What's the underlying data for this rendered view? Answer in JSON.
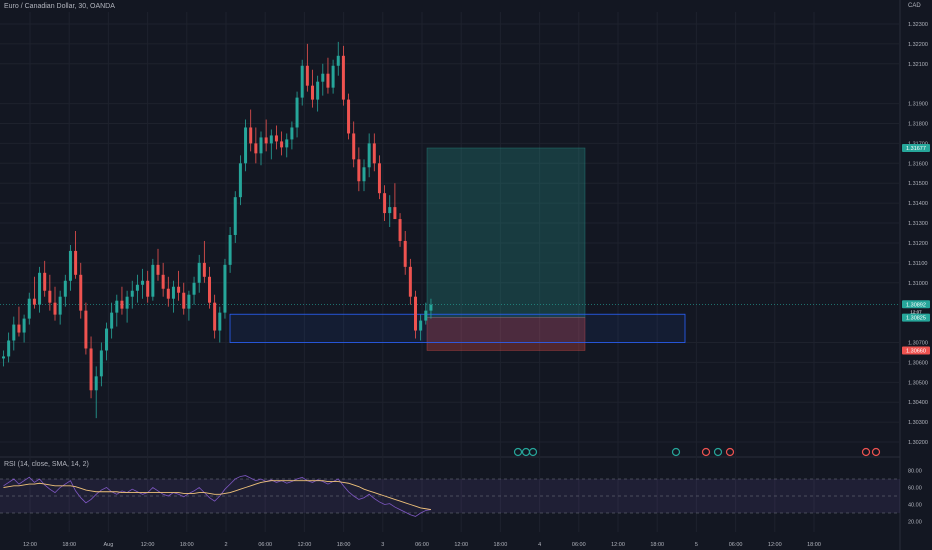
{
  "symbol_title": "Euro / Canadian Dollar, 30, OANDA",
  "currency_label": "CAD",
  "rsi_title": "RSI (14, close, SMA, 14, 2)",
  "colors": {
    "background": "#131722",
    "up": "#26a69a",
    "down": "#ef5350",
    "grid": "#1e222d",
    "text": "#b2b5be"
  },
  "chart_data": {
    "type": "candlestick",
    "title": "Euro / Canadian Dollar, 30, OANDA",
    "y_axis": {
      "ticks": [
        "1.32300",
        "1.32200",
        "1.32100",
        "1.31900",
        "1.31800",
        "1.31700",
        "1.31600",
        "1.31500",
        "1.31400",
        "1.31300",
        "1.31200",
        "1.31100",
        "1.31000",
        "1.30700",
        "1.30600",
        "1.30500",
        "1.30400",
        "1.30300",
        "1.30200"
      ],
      "tick_values": [
        1.323,
        1.322,
        1.321,
        1.319,
        1.318,
        1.317,
        1.316,
        1.315,
        1.314,
        1.313,
        1.312,
        1.311,
        1.31,
        1.307,
        1.306,
        1.305,
        1.304,
        1.303,
        1.302
      ],
      "range": [
        1.3015,
        1.3236
      ]
    },
    "x_axis": {
      "ticks": [
        "12:00",
        "18:00",
        "Aug",
        "12:00",
        "18:00",
        "2",
        "06:00",
        "12:00",
        "18:00",
        "3",
        "06:00",
        "12:00",
        "18:00",
        "4",
        "06:00",
        "12:00",
        "18:00",
        "5",
        "06:00",
        "12:00",
        "18:00"
      ]
    },
    "price_labels": [
      {
        "text": "1.31677",
        "value": 1.31677,
        "color": "#26a69a"
      },
      {
        "text": "1.30892",
        "value": 1.30892,
        "color": "#26a69a"
      },
      {
        "text": "1.30825",
        "value": 1.30825,
        "color": "#26a69a"
      },
      {
        "text": "1.30660",
        "value": 1.3066,
        "color": "#ef5350"
      }
    ],
    "price_label_sub": "12:07",
    "position": {
      "entry": 1.30825,
      "target": 1.31677,
      "stop": 1.3066
    },
    "zone": {
      "top": 1.30842,
      "bottom": 1.307
    },
    "candles": [
      [
        1.3062,
        1.3066,
        1.3058,
        1.3063
      ],
      [
        1.3063,
        1.3075,
        1.306,
        1.3071
      ],
      [
        1.3071,
        1.3083,
        1.3066,
        1.3079
      ],
      [
        1.3079,
        1.3088,
        1.3073,
        1.3075
      ],
      [
        1.3075,
        1.3084,
        1.307,
        1.3082
      ],
      [
        1.3082,
        1.3095,
        1.3079,
        1.3092
      ],
      [
        1.3092,
        1.3103,
        1.3087,
        1.3089
      ],
      [
        1.3089,
        1.3108,
        1.3085,
        1.3105
      ],
      [
        1.3105,
        1.3111,
        1.3093,
        1.3096
      ],
      [
        1.3096,
        1.3104,
        1.3086,
        1.309
      ],
      [
        1.309,
        1.3098,
        1.3081,
        1.3084
      ],
      [
        1.3084,
        1.3096,
        1.3079,
        1.3093
      ],
      [
        1.3093,
        1.3104,
        1.3088,
        1.3101
      ],
      [
        1.3101,
        1.3119,
        1.3096,
        1.3116
      ],
      [
        1.3116,
        1.3126,
        1.3102,
        1.3104
      ],
      [
        1.3104,
        1.311,
        1.3082,
        1.3086
      ],
      [
        1.3086,
        1.309,
        1.3064,
        1.3067
      ],
      [
        1.3067,
        1.3073,
        1.3042,
        1.3046
      ],
      [
        1.3046,
        1.3058,
        1.3032,
        1.3053
      ],
      [
        1.3053,
        1.307,
        1.3048,
        1.3066
      ],
      [
        1.3066,
        1.308,
        1.3061,
        1.3077
      ],
      [
        1.3077,
        1.309,
        1.3072,
        1.3085
      ],
      [
        1.3085,
        1.3094,
        1.3078,
        1.3091
      ],
      [
        1.3091,
        1.3098,
        1.3084,
        1.3087
      ],
      [
        1.3087,
        1.3096,
        1.308,
        1.3093
      ],
      [
        1.3093,
        1.3101,
        1.3087,
        1.3096
      ],
      [
        1.3096,
        1.3104,
        1.309,
        1.3099
      ],
      [
        1.3099,
        1.3107,
        1.3092,
        1.3101
      ],
      [
        1.3101,
        1.3106,
        1.309,
        1.3093
      ],
      [
        1.3093,
        1.3112,
        1.3091,
        1.3109
      ],
      [
        1.3109,
        1.3117,
        1.3101,
        1.3104
      ],
      [
        1.3104,
        1.311,
        1.3093,
        1.3097
      ],
      [
        1.3097,
        1.3103,
        1.3088,
        1.3092
      ],
      [
        1.3092,
        1.3101,
        1.3085,
        1.3098
      ],
      [
        1.3098,
        1.3106,
        1.3091,
        1.3095
      ],
      [
        1.3095,
        1.31,
        1.3084,
        1.3087
      ],
      [
        1.3087,
        1.3096,
        1.3081,
        1.3094
      ],
      [
        1.3094,
        1.3103,
        1.3089,
        1.31
      ],
      [
        1.31,
        1.3114,
        1.3095,
        1.311
      ],
      [
        1.311,
        1.3121,
        1.31,
        1.3103
      ],
      [
        1.3103,
        1.3108,
        1.3087,
        1.309
      ],
      [
        1.309,
        1.3094,
        1.3072,
        1.3076
      ],
      [
        1.3076,
        1.3088,
        1.307,
        1.3085
      ],
      [
        1.3085,
        1.3112,
        1.3082,
        1.3109
      ],
      [
        1.3109,
        1.3128,
        1.3105,
        1.3124
      ],
      [
        1.3124,
        1.3146,
        1.312,
        1.3143
      ],
      [
        1.3143,
        1.3164,
        1.3139,
        1.316
      ],
      [
        1.316,
        1.3182,
        1.3156,
        1.3178
      ],
      [
        1.3178,
        1.3187,
        1.3166,
        1.317
      ],
      [
        1.317,
        1.3178,
        1.316,
        1.3165
      ],
      [
        1.3165,
        1.3176,
        1.3159,
        1.3173
      ],
      [
        1.3173,
        1.3182,
        1.3166,
        1.317
      ],
      [
        1.317,
        1.3177,
        1.3162,
        1.3174
      ],
      [
        1.3174,
        1.3179,
        1.3167,
        1.3171
      ],
      [
        1.3171,
        1.3176,
        1.3164,
        1.3168
      ],
      [
        1.3168,
        1.3175,
        1.3163,
        1.3172
      ],
      [
        1.3172,
        1.3181,
        1.3167,
        1.3178
      ],
      [
        1.3178,
        1.3196,
        1.3173,
        1.3193
      ],
      [
        1.3193,
        1.3212,
        1.3189,
        1.3209
      ],
      [
        1.3209,
        1.322,
        1.3196,
        1.3199
      ],
      [
        1.3199,
        1.3207,
        1.3188,
        1.3192
      ],
      [
        1.3192,
        1.3204,
        1.3186,
        1.3201
      ],
      [
        1.3201,
        1.321,
        1.3194,
        1.3205
      ],
      [
        1.3205,
        1.3213,
        1.3195,
        1.3198
      ],
      [
        1.3198,
        1.3212,
        1.3195,
        1.3209
      ],
      [
        1.3209,
        1.3221,
        1.3204,
        1.3214
      ],
      [
        1.3214,
        1.3219,
        1.3189,
        1.3192
      ],
      [
        1.3192,
        1.3195,
        1.3172,
        1.3175
      ],
      [
        1.3175,
        1.3181,
        1.3158,
        1.3162
      ],
      [
        1.3162,
        1.3168,
        1.3146,
        1.3151
      ],
      [
        1.3151,
        1.3162,
        1.3146,
        1.3158
      ],
      [
        1.3158,
        1.3175,
        1.3153,
        1.317
      ],
      [
        1.317,
        1.3175,
        1.3156,
        1.316
      ],
      [
        1.316,
        1.3164,
        1.3142,
        1.3145
      ],
      [
        1.3145,
        1.3149,
        1.3131,
        1.3135
      ],
      [
        1.3135,
        1.3144,
        1.3128,
        1.3138
      ],
      [
        1.3138,
        1.315,
        1.3133,
        1.3132
      ],
      [
        1.3132,
        1.3135,
        1.3118,
        1.3121
      ],
      [
        1.3121,
        1.3126,
        1.3104,
        1.3108
      ],
      [
        1.3108,
        1.3112,
        1.3089,
        1.3093
      ],
      [
        1.3093,
        1.3096,
        1.3072,
        1.3076
      ],
      [
        1.3076,
        1.3084,
        1.3071,
        1.3081
      ],
      [
        1.3081,
        1.309,
        1.3079,
        1.3086
      ],
      [
        1.3086,
        1.3092,
        1.3082,
        1.3089
      ]
    ],
    "rsi": {
      "ticks": [
        "80.00",
        "60.00",
        "40.00",
        "20.00"
      ],
      "tick_values": [
        80,
        60,
        40,
        20
      ],
      "bands": [
        70,
        50,
        30
      ],
      "rsi_values": [
        62,
        66,
        70,
        64,
        68,
        72,
        66,
        70,
        63,
        58,
        54,
        60,
        64,
        68,
        56,
        48,
        42,
        46,
        52,
        57,
        60,
        55,
        52,
        56,
        54,
        58,
        55,
        52,
        54,
        60,
        56,
        52,
        50,
        54,
        52,
        49,
        53,
        56,
        60,
        54,
        48,
        44,
        50,
        58,
        64,
        70,
        73,
        74,
        71,
        68,
        70,
        67,
        69,
        66,
        68,
        65,
        67,
        70,
        72,
        68,
        66,
        69,
        67,
        64,
        67,
        70,
        62,
        55,
        50,
        46,
        48,
        52,
        47,
        43,
        40,
        41,
        37,
        34,
        31,
        28,
        26,
        30,
        33,
        34
      ],
      "ma_values": [
        60,
        61,
        62,
        62,
        63,
        64,
        64,
        65,
        64,
        63,
        62,
        62,
        62,
        62,
        61,
        59,
        57,
        56,
        55,
        55,
        55,
        55,
        55,
        54,
        54,
        54,
        54,
        54,
        54,
        54,
        54,
        54,
        54,
        54,
        54,
        53,
        53,
        53,
        54,
        54,
        53,
        52,
        52,
        53,
        54,
        56,
        58,
        60,
        62,
        64,
        66,
        67,
        68,
        68,
        68,
        68,
        68,
        68,
        68,
        68,
        68,
        68,
        68,
        67,
        67,
        67,
        66,
        65,
        63,
        61,
        58,
        56,
        54,
        52,
        50,
        48,
        46,
        44,
        42,
        40,
        38,
        36,
        35,
        34
      ]
    }
  }
}
